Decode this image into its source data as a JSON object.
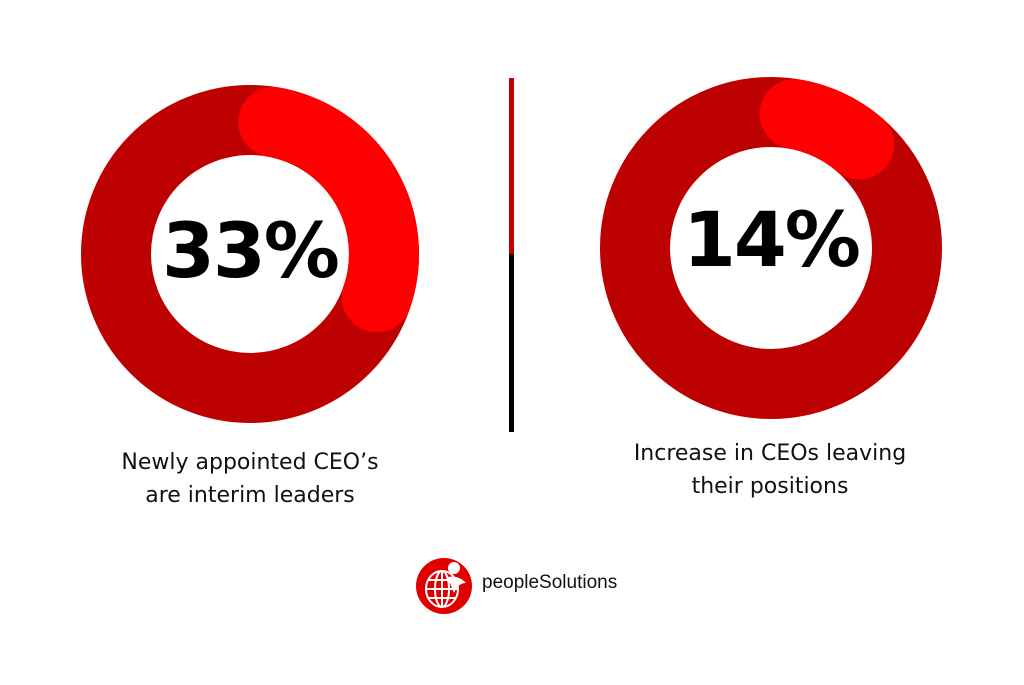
{
  "chart_data": [
    {
      "type": "pie",
      "title": "",
      "values": [
        33,
        67
      ],
      "value_label": "33%",
      "caption_lines": [
        "Newly appointed CEO’s",
        "are interim leaders"
      ]
    },
    {
      "type": "pie",
      "title": "",
      "values": [
        14,
        86
      ],
      "value_label": "14%",
      "caption_lines": [
        "Increase in CEOs leaving",
        "their positions"
      ]
    }
  ],
  "colors": {
    "highlight": "#ff0000",
    "ring": "#bd0000",
    "divider_top": "#c00000",
    "divider_bottom": "#000000"
  },
  "logo": {
    "text": "peopleSolutions",
    "icon": "globe-person-icon"
  }
}
